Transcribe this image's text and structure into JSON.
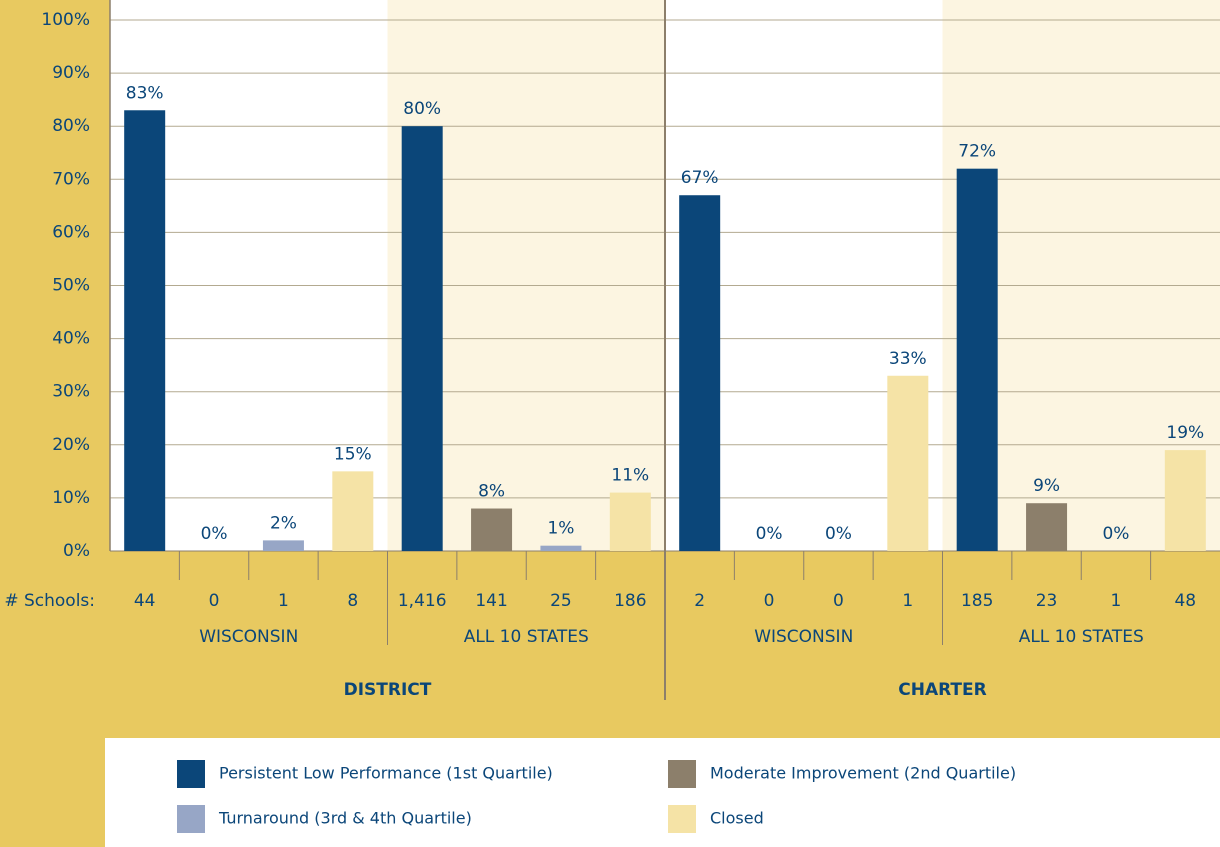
{
  "chart_data": {
    "type": "bar",
    "categories": [
      "WISCONSIN",
      "ALL 10 STATES",
      "WISCONSIN",
      "ALL 10 STATES"
    ],
    "groups": [
      "DISTRICT",
      "CHARTER"
    ],
    "schools_label": "# Schools:",
    "series": [
      {
        "name": "Persistent Low Performance (1st Quartile)",
        "color": "#0b4679",
        "values": [
          83,
          80,
          67,
          72
        ],
        "value_labels": [
          "83%",
          "80%",
          "67%",
          "72%"
        ],
        "schools": [
          44,
          {
            "value": 1416,
            "label": "1,416"
          },
          2,
          185
        ]
      },
      {
        "name": "Moderate Improvement (2nd Quartile)",
        "color": "#8c7f6b",
        "values": [
          0,
          8,
          0,
          9
        ],
        "value_labels": [
          "0%",
          "8%",
          "0%",
          "9%"
        ],
        "schools": [
          0,
          141,
          0,
          23
        ]
      },
      {
        "name": "Turnaround (3rd & 4th Quartile)",
        "color": "#97a6c6",
        "values": [
          2,
          1,
          0,
          0
        ],
        "value_labels": [
          "2%",
          "1%",
          "0%",
          "0%"
        ],
        "schools": [
          1,
          25,
          0,
          1
        ]
      },
      {
        "name": "Closed",
        "color": "#f5e3a6",
        "values": [
          15,
          11,
          33,
          19
        ],
        "value_labels": [
          "15%",
          "11%",
          "33%",
          "19%"
        ],
        "schools": [
          8,
          186,
          1,
          48
        ]
      }
    ],
    "ylim": [
      0,
      100
    ],
    "yticks": [
      {
        "value": 0,
        "label": "0%"
      },
      {
        "value": 10,
        "label": "10%"
      },
      {
        "value": 20,
        "label": "20%"
      },
      {
        "value": 30,
        "label": "30%"
      },
      {
        "value": 40,
        "label": "40%"
      },
      {
        "value": 50,
        "label": "50%"
      },
      {
        "value": 60,
        "label": "60%"
      },
      {
        "value": 70,
        "label": "70%"
      },
      {
        "value": 80,
        "label": "80%"
      },
      {
        "value": 90,
        "label": "90%"
      },
      {
        "value": 100,
        "label": "100%"
      }
    ],
    "grid": true,
    "legend": "bottom"
  }
}
